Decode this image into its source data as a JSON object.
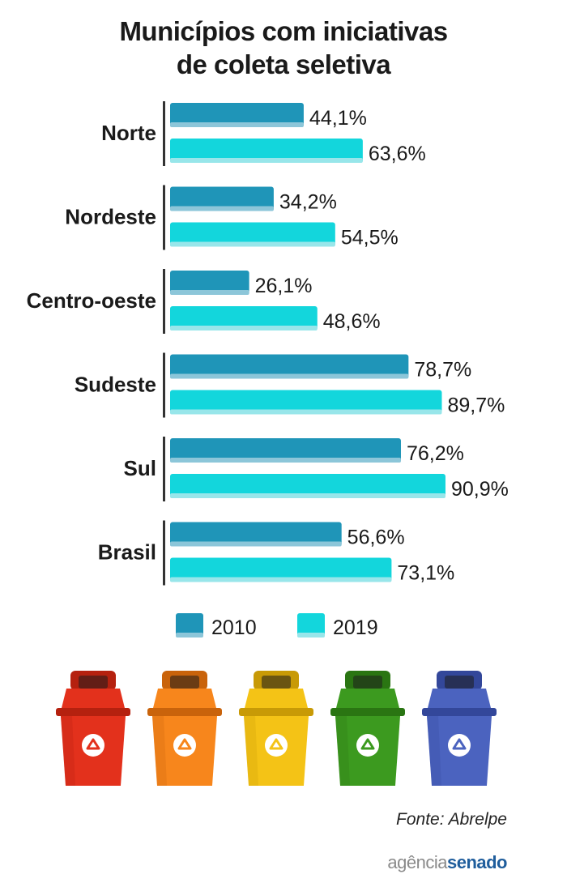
{
  "title_lines": [
    "Municípios com iniciativas",
    "de coleta seletiva"
  ],
  "chart_data": {
    "type": "bar",
    "orientation": "horizontal",
    "categories": [
      "Norte",
      "Nordeste",
      "Centro-oeste",
      "Sudeste",
      "Sul",
      "Brasil"
    ],
    "series": [
      {
        "name": "2010",
        "values": [
          44.1,
          34.2,
          26.1,
          78.7,
          76.2,
          56.6
        ],
        "labels": [
          "44,1%",
          "34,2%",
          "26,1%",
          "78,7%",
          "76,2%",
          "56,6%"
        ],
        "color": "#1f95b8",
        "shade": "#8cc6d9"
      },
      {
        "name": "2019",
        "values": [
          63.6,
          54.5,
          48.6,
          89.7,
          90.9,
          73.1
        ],
        "labels": [
          "63,6%",
          "54,5%",
          "48,6%",
          "89,7%",
          "90,9%",
          "73,1%"
        ],
        "color": "#13d6dc",
        "shade": "#98e6ea"
      }
    ],
    "xlim": [
      0,
      100
    ],
    "grid": false,
    "legend_position": "bottom"
  },
  "bins": [
    {
      "name": "red-bin",
      "color": "#e3311c",
      "dark": "#b5210f"
    },
    {
      "name": "orange-bin",
      "color": "#f7861c",
      "dark": "#c9630b"
    },
    {
      "name": "yellow-bin",
      "color": "#f4c316",
      "dark": "#c89a06"
    },
    {
      "name": "green-bin",
      "color": "#3c9a1f",
      "dark": "#2a7512"
    },
    {
      "name": "blue-bin",
      "color": "#4b63bf",
      "dark": "#33479a"
    }
  ],
  "recycle_icon": "recycle-icon",
  "source": "Fonte: Abrelpe",
  "logo": {
    "part1": "agência",
    "part2": "senado"
  }
}
